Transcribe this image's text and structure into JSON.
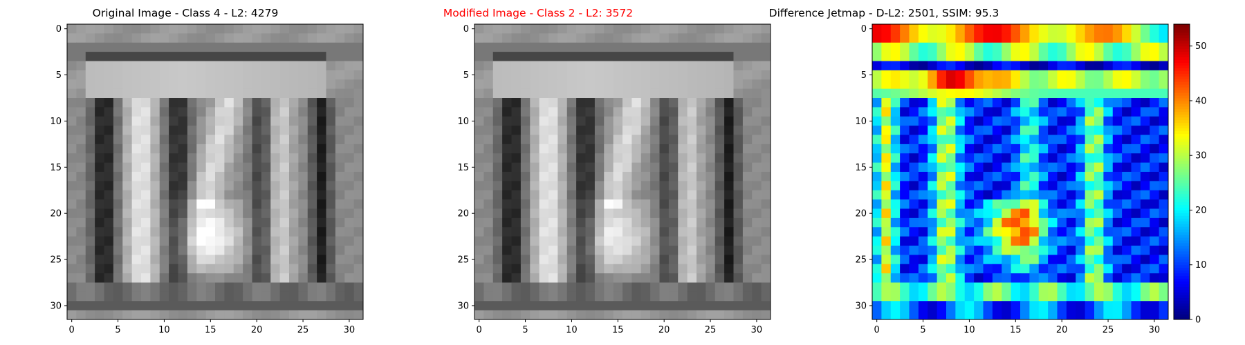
{
  "colors": {
    "title_default": "#000000",
    "title_highlight": "#ff0000",
    "axes_frame": "#000000",
    "colorbar_min": "#00007f",
    "colorbar_max": "#7f0000"
  },
  "chart_data": [
    {
      "type": "heatmap",
      "title": "Original Image - Class 4 - L2: 4279",
      "title_color": "#000000",
      "colormap": "gray",
      "grid": false,
      "xlim": [
        -0.5,
        31.5
      ],
      "ylim": [
        31.5,
        -0.5
      ],
      "xticks": [
        0,
        5,
        10,
        15,
        20,
        25,
        30
      ],
      "yticks": [
        0,
        5,
        10,
        15,
        20,
        25,
        30
      ],
      "image_size": [
        32,
        32
      ],
      "description_of_values": "grayscale digit image: three dark vertical strokes with a bright bowl at rows 19-26, bright horizontal band at rows 4-7"
    },
    {
      "type": "heatmap",
      "title": "Modified Image - Class 2 - L2: 3572",
      "title_color": "#ff0000",
      "colormap": "gray",
      "grid": false,
      "xlim": [
        -0.5,
        31.5
      ],
      "ylim": [
        31.5,
        -0.5
      ],
      "xticks": [
        0,
        5,
        10,
        15,
        20,
        25,
        30
      ],
      "yticks": [
        0,
        5,
        10,
        15,
        20,
        25,
        30
      ],
      "image_size": [
        32,
        32
      ]
    },
    {
      "type": "heatmap",
      "title": "Difference Jetmap - D-L2: 2501, SSIM: 95.3",
      "title_color": "#000000",
      "colormap": "jet",
      "grid": false,
      "xlim": [
        -0.5,
        31.5
      ],
      "ylim": [
        31.5,
        -0.5
      ],
      "xticks": [
        0,
        5,
        10,
        15,
        20,
        25,
        30
      ],
      "yticks": [
        0,
        5,
        10,
        15,
        20,
        25,
        30
      ],
      "image_size": [
        32,
        32
      ],
      "colorbar": {
        "min": 0,
        "max": 54,
        "ticks": [
          0,
          10,
          20,
          30,
          40,
          50
        ],
        "placement": "right"
      }
    }
  ]
}
